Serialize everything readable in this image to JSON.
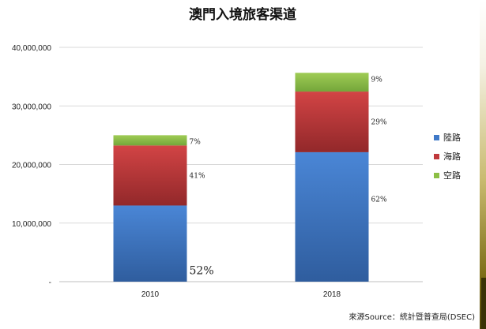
{
  "chart_data": {
    "type": "bar",
    "stacked": true,
    "title": "澳門入境旅客渠道",
    "categories": [
      "2010",
      "2018"
    ],
    "series": [
      {
        "name": "陸路",
        "color": "#3f79c8",
        "values": [
          13000000,
          22100000
        ],
        "labels": [
          "52%",
          "62%"
        ]
      },
      {
        "name": "海路",
        "color": "#c0393c",
        "values": [
          10250000,
          10350000
        ],
        "labels": [
          "41%",
          "29%"
        ]
      },
      {
        "name": "空路",
        "color": "#8cbf45",
        "values": [
          1750000,
          3200000
        ],
        "labels": [
          "7%",
          "9%"
        ]
      }
    ],
    "ylim": [
      0,
      40000000
    ],
    "yticks": [
      "-",
      "10,000,000",
      "20,000,000",
      "30,000,000",
      "40,000,000"
    ],
    "grid": true,
    "legend_position": "right",
    "source": "來源Source：統計暨普查局(DSEC)"
  }
}
